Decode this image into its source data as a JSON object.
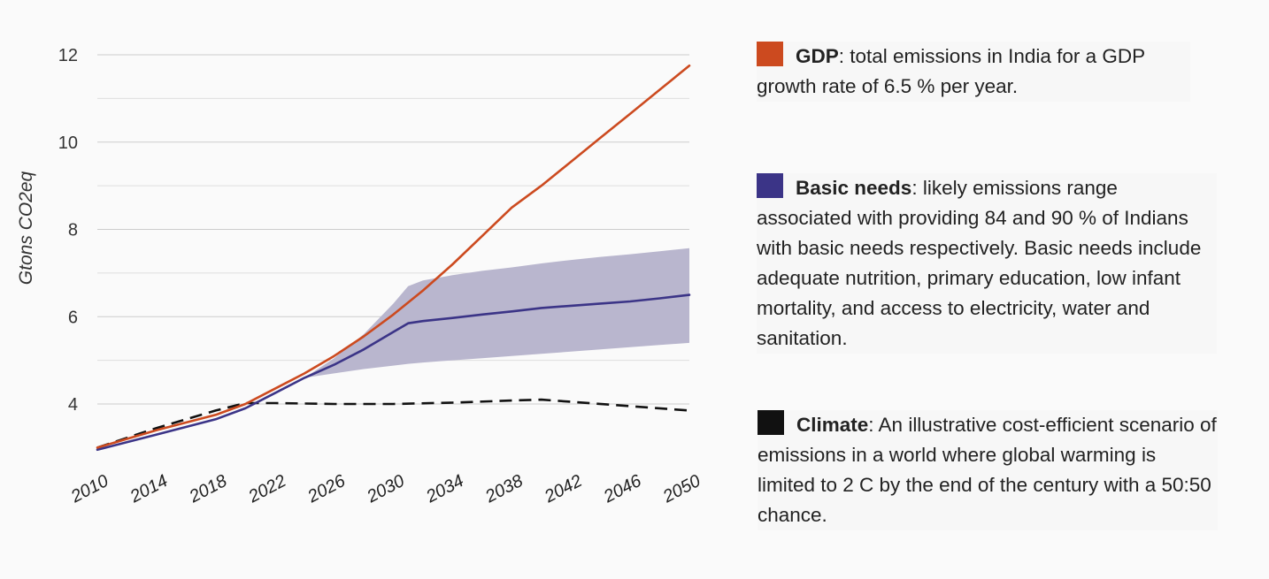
{
  "chart_data": {
    "type": "line",
    "xlabel": "",
    "ylabel": "Gtons CO2eq",
    "xlim": [
      2010,
      2050
    ],
    "ylim": [
      3,
      12.5
    ],
    "x_ticks": [
      "2010",
      "2014",
      "2018",
      "2022",
      "2026",
      "2030",
      "2034",
      "2038",
      "2042",
      "2046",
      "2050"
    ],
    "y_ticks": [
      "4",
      "6",
      "8",
      "10",
      "12"
    ],
    "grid": "horizontal",
    "legend_placement": "right",
    "series": [
      {
        "name": "GDP",
        "color": "#cc4a1f",
        "style": "solid",
        "x": [
          2010,
          2014,
          2018,
          2020,
          2022,
          2024,
          2026,
          2028,
          2030,
          2032,
          2034,
          2036,
          2038,
          2040,
          2042,
          2044,
          2046,
          2048,
          2050
        ],
        "y": [
          3.0,
          3.4,
          3.75,
          4.0,
          4.35,
          4.7,
          5.1,
          5.55,
          6.05,
          6.6,
          7.2,
          7.85,
          8.5,
          9.0,
          9.55,
          10.1,
          10.65,
          11.2,
          11.75
        ]
      },
      {
        "name": "Basic needs",
        "color": "#3b3487",
        "style": "solid",
        "x": [
          2010,
          2014,
          2018,
          2020,
          2022,
          2024,
          2026,
          2028,
          2030,
          2031,
          2032,
          2034,
          2036,
          2038,
          2040,
          2042,
          2044,
          2046,
          2048,
          2050
        ],
        "y": [
          2.95,
          3.3,
          3.65,
          3.9,
          4.25,
          4.6,
          4.9,
          5.25,
          5.65,
          5.85,
          5.9,
          5.97,
          6.05,
          6.12,
          6.2,
          6.25,
          6.3,
          6.35,
          6.42,
          6.5
        ]
      },
      {
        "name": "Climate",
        "color": "#111111",
        "style": "dashed",
        "x": [
          2010,
          2014,
          2018,
          2020,
          2022,
          2026,
          2030,
          2034,
          2038,
          2040,
          2042,
          2046,
          2050
        ],
        "y": [
          3.0,
          3.45,
          3.85,
          4.02,
          4.02,
          4.0,
          4.0,
          4.03,
          4.08,
          4.1,
          4.05,
          3.95,
          3.85
        ]
      }
    ],
    "band": {
      "series": "Basic needs",
      "color": "#b9b6ce",
      "x": [
        2024,
        2026,
        2028,
        2030,
        2031,
        2032,
        2034,
        2036,
        2038,
        2040,
        2042,
        2044,
        2046,
        2048,
        2050
      ],
      "upper": [
        4.6,
        5.05,
        5.6,
        6.3,
        6.7,
        6.83,
        6.95,
        7.05,
        7.13,
        7.22,
        7.3,
        7.37,
        7.43,
        7.5,
        7.57
      ],
      "lower": [
        4.6,
        4.7,
        4.8,
        4.88,
        4.92,
        4.95,
        5.0,
        5.05,
        5.1,
        5.15,
        5.2,
        5.25,
        5.3,
        5.35,
        5.4
      ]
    }
  },
  "legend": {
    "gdp": {
      "name": "GDP",
      "color": "#cc4a1f",
      "text": ": total emissions in India for a GDP growth rate of 6.5 % per year."
    },
    "basic": {
      "name": "Basic needs",
      "color": "#3b3487",
      "text": ": likely emissions range associated with providing 84 and 90 % of Indians with basic needs respectively. Basic needs include adequate nutrition, primary education, low infant mortality, and access to electricity, water and sanitation."
    },
    "climate": {
      "name": "Climate",
      "color": "#111111",
      "text": ": An illustrative cost-efficient scenario of emissions in a world where global warming is limited to 2 C by the end of the century with a 50:50 chance."
    }
  }
}
